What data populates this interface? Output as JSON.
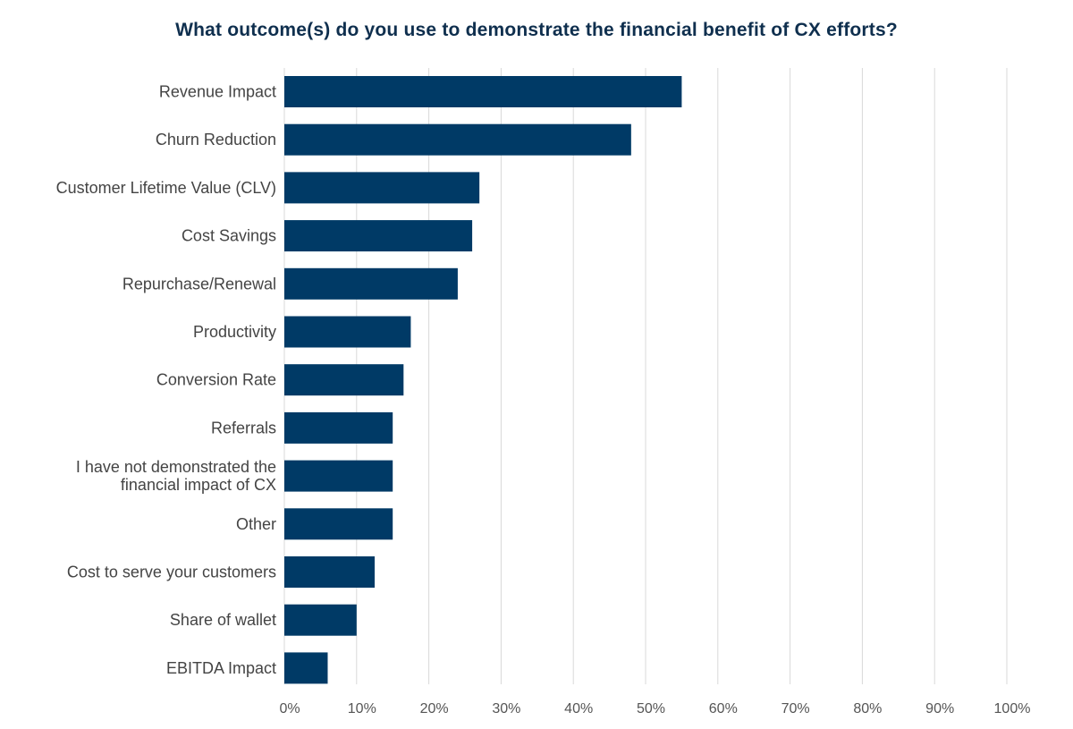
{
  "chart_data": {
    "type": "bar",
    "orientation": "horizontal",
    "title": "What outcome(s) do you use to demonstrate the financial benefit of CX efforts?",
    "xlabel": "",
    "ylabel": "",
    "xlim": [
      0,
      100
    ],
    "grid": true,
    "bar_color": "#003a66",
    "categories": [
      [
        "Revenue Impact"
      ],
      [
        "Churn Reduction"
      ],
      [
        "Customer Lifetime Value (CLV)"
      ],
      [
        "Cost Savings"
      ],
      [
        "Repurchase/Renewal"
      ],
      [
        "Productivity"
      ],
      [
        "Conversion Rate"
      ],
      [
        "Referrals"
      ],
      [
        "I have not demonstrated the",
        "financial impact of CX"
      ],
      [
        "Other"
      ],
      [
        "Cost to serve your customers"
      ],
      [
        "Share of wallet"
      ],
      [
        "EBITDA Impact"
      ]
    ],
    "values": [
      55,
      48,
      27,
      26,
      24,
      17.5,
      16.5,
      15,
      15,
      15,
      12.5,
      10,
      6
    ],
    "x_ticks": [
      "0%",
      "10%",
      "20%",
      "30%",
      "40%",
      "50%",
      "60%",
      "70%",
      "80%",
      "90%",
      "100%"
    ]
  }
}
